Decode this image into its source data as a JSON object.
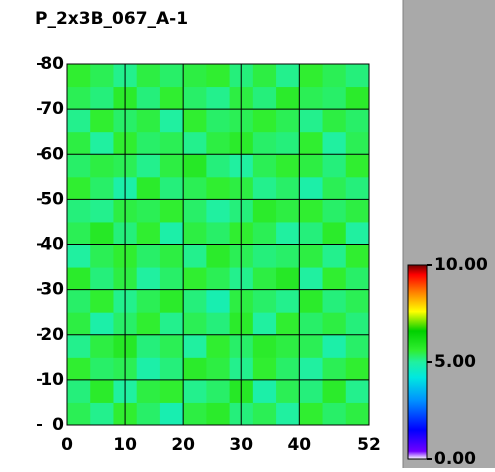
{
  "chart_data": {
    "type": "heatmap",
    "title": "P_2x3B_067_A-1",
    "x_edges": [
      0,
      4,
      8,
      12,
      16,
      20,
      24,
      28,
      32,
      36,
      40,
      44,
      48,
      52
    ],
    "y_edges": [
      0,
      5,
      10,
      15,
      20,
      25,
      30,
      35,
      40,
      45,
      50,
      55,
      60,
      65,
      70,
      75,
      80
    ],
    "values": [
      [
        5.4,
        5.1,
        5.6,
        5.3,
        4.8,
        5.5,
        5.7,
        5.2,
        5.4,
        5.0,
        5.6,
        5.3,
        5.5
      ],
      [
        5.2,
        5.7,
        5.0,
        5.5,
        5.6,
        5.1,
        5.3,
        5.8,
        4.9,
        5.4,
        5.2,
        5.7,
        5.1
      ],
      [
        5.6,
        5.3,
        5.4,
        4.9,
        5.2,
        5.7,
        5.5,
        5.1,
        5.6,
        5.3,
        5.0,
        5.4,
        5.6
      ],
      [
        5.1,
        5.5,
        5.8,
        5.2,
        5.4,
        5.0,
        5.6,
        5.3,
        5.7,
        5.5,
        5.4,
        4.9,
        5.3
      ],
      [
        5.5,
        4.9,
        5.3,
        5.6,
        5.1,
        5.4,
        5.2,
        5.7,
        5.0,
        5.6,
        5.3,
        5.5,
        5.2
      ],
      [
        5.3,
        5.6,
        5.1,
        5.4,
        5.7,
        5.2,
        4.8,
        5.5,
        5.3,
        5.1,
        5.7,
        5.2,
        5.4
      ],
      [
        5.7,
        5.2,
        5.5,
        5.0,
        5.3,
        5.6,
        5.4,
        5.1,
        5.5,
        5.8,
        5.0,
        5.6,
        5.3
      ],
      [
        5.0,
        5.4,
        5.6,
        5.3,
        5.5,
        5.1,
        5.7,
        5.4,
        5.2,
        5.3,
        5.5,
        5.1,
        5.6
      ],
      [
        5.4,
        5.8,
        5.2,
        5.6,
        4.9,
        5.5,
        5.3,
        5.6,
        5.4,
        5.0,
        5.2,
        5.7,
        5.0
      ],
      [
        5.2,
        5.1,
        5.5,
        5.4,
        5.6,
        5.3,
        5.0,
        5.2,
        5.7,
        5.5,
        5.6,
        5.3,
        5.5
      ],
      [
        5.6,
        5.3,
        4.9,
        5.7,
        5.2,
        5.4,
        5.6,
        5.5,
        5.1,
        5.3,
        4.9,
        5.4,
        5.2
      ],
      [
        5.3,
        5.5,
        5.4,
        5.1,
        5.5,
        5.8,
        5.2,
        5.0,
        5.4,
        5.6,
        5.5,
        5.2,
        5.6
      ],
      [
        5.5,
        5.0,
        5.6,
        5.3,
        5.4,
        5.1,
        5.5,
        5.7,
        5.3,
        5.2,
        5.6,
        5.0,
        5.4
      ],
      [
        5.1,
        5.6,
        5.3,
        5.5,
        5.0,
        5.6,
        5.3,
        5.4,
        5.6,
        5.4,
        5.1,
        5.5,
        5.3
      ],
      [
        5.4,
        5.2,
        5.7,
        5.2,
        5.6,
        5.3,
        5.1,
        5.5,
        5.2,
        5.7,
        5.4,
        5.3,
        5.7
      ],
      [
        5.6,
        5.4,
        5.1,
        5.5,
        5.3,
        5.5,
        5.6,
        5.2,
        5.5,
        5.1,
        5.6,
        5.4,
        5.2
      ]
    ],
    "xlim": [
      0,
      52
    ],
    "ylim": [
      0,
      80
    ],
    "xticks": [
      0,
      10,
      20,
      30,
      40,
      52
    ],
    "yticks": [
      0,
      10,
      20,
      30,
      40,
      50,
      60,
      70,
      80
    ],
    "grid": true,
    "colorbar_lim": [
      0,
      10
    ],
    "colorbar_ticks": [
      {
        "value": 0,
        "label": "0.00"
      },
      {
        "value": 5,
        "label": "5.00"
      },
      {
        "value": 10,
        "label": "10.00"
      }
    ],
    "colorscale": [
      [
        0,
        "#ffffff"
      ],
      [
        0.4,
        "#7000ff"
      ],
      [
        1.5,
        "#0000ff"
      ],
      [
        3,
        "#0090ff"
      ],
      [
        4.2,
        "#00e8e0"
      ],
      [
        5,
        "#20f0a0"
      ],
      [
        5.6,
        "#30ee30"
      ],
      [
        6.6,
        "#00d000"
      ],
      [
        7.6,
        "#ffff00"
      ],
      [
        8.6,
        "#ff8000"
      ],
      [
        9.5,
        "#ff0000"
      ],
      [
        10,
        "#700000"
      ]
    ]
  }
}
